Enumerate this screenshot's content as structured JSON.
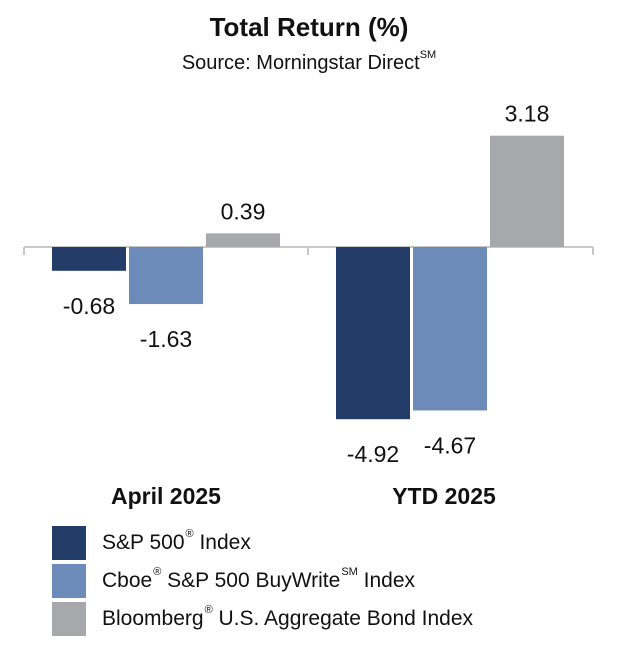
{
  "chart_data": {
    "type": "bar",
    "title": "Total Return (%)",
    "subtitle": "Source: Morningstar Direct",
    "subtitle_sup": "SM",
    "categories": [
      "April 2025",
      "YTD 2025"
    ],
    "series": [
      {
        "name": "S&P 500",
        "name_sup": "®",
        "name_suffix": "Index",
        "color": "#243c68",
        "values": [
          -0.68,
          -4.92
        ]
      },
      {
        "name": "Cboe",
        "name_sup": "®",
        "name_suffix": "S&P 500 BuyWrite",
        "name_sup2": "SM",
        "name_suffix2": "Index",
        "color": "#6c8bb8",
        "values": [
          -1.63,
          -4.67
        ]
      },
      {
        "name": "Bloomberg",
        "name_sup": "®",
        "name_suffix": "U.S. Aggregate Bond Index",
        "color": "#a6a8ab",
        "values": [
          0.39,
          3.18
        ]
      }
    ],
    "data_labels": [
      [
        "-0.68",
        "-4.92"
      ],
      [
        "-1.63",
        "-4.67"
      ],
      [
        "0.39",
        "3.18"
      ]
    ],
    "ylim": [
      -5.1,
      3.4
    ],
    "grid": false,
    "legend_position": "bottom-left"
  }
}
